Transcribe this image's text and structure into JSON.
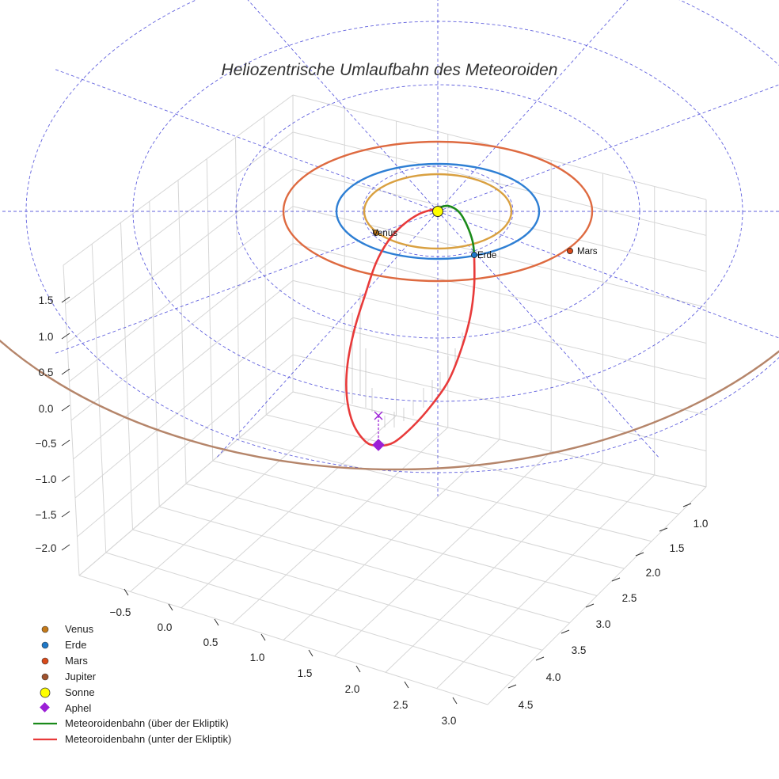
{
  "chart_data": {
    "type": "line",
    "projection": "3d",
    "title": "Heliozentrische Umlaufbahn des Meteoroiden",
    "axes": {
      "x_ticks": [
        "−0.5",
        "0.0",
        "0.5",
        "1.0",
        "1.5",
        "2.0",
        "2.5",
        "3.0"
      ],
      "y_ticks": [
        "1.0",
        "1.5",
        "2.0",
        "2.5",
        "3.0",
        "3.5",
        "4.0",
        "4.5"
      ],
      "z_ticks": [
        "1.5",
        "1.0",
        "0.5",
        "0.0",
        "−0.5",
        "−1.0",
        "−1.5",
        "−2.0"
      ],
      "xlim": [
        -0.75,
        3.25
      ],
      "ylim": [
        0.75,
        4.75
      ],
      "zlim": [
        -2.25,
        1.75
      ],
      "grid": true
    },
    "bodies": [
      {
        "name": "Venus",
        "label": "Venus",
        "color": "#c47a1a",
        "orbit_radius_au": 0.72,
        "orbit_color": "#d9a040"
      },
      {
        "name": "Erde",
        "label": "Erde",
        "color": "#1f78c8",
        "orbit_radius_au": 1.0,
        "orbit_color": "#2e7fd4"
      },
      {
        "name": "Mars",
        "label": "Mars",
        "color": "#d94a1a",
        "orbit_radius_au": 1.52,
        "orbit_color": "#de6a40"
      },
      {
        "name": "Jupiter",
        "label": "",
        "color": "#a0522d",
        "orbit_radius_au": 5.2,
        "orbit_color": "#b5856a"
      }
    ],
    "sun": {
      "name": "Sonne",
      "color": "#ffff00"
    },
    "aphel": {
      "name": "Aphel",
      "color": "#9b1fd6"
    },
    "series": [
      {
        "name": "Meteoroidenbahn (über der Ekliptik)",
        "color": "#1a8a1a"
      },
      {
        "name": "Meteoroidenbahn (unter der Ekliptik)",
        "color": "#e83a3a"
      }
    ],
    "reference_grid": {
      "rings_au": [
        1,
        2,
        3,
        4
      ],
      "color": "#3a3ad6"
    },
    "legend": {
      "placement": "bottom-left",
      "entries": [
        "Venus",
        "Erde",
        "Mars",
        "Jupiter",
        "Sonne",
        "Aphel",
        "Meteoroidenbahn (über der Ekliptik)",
        "Meteoroidenbahn (unter der Ekliptik)"
      ]
    }
  }
}
